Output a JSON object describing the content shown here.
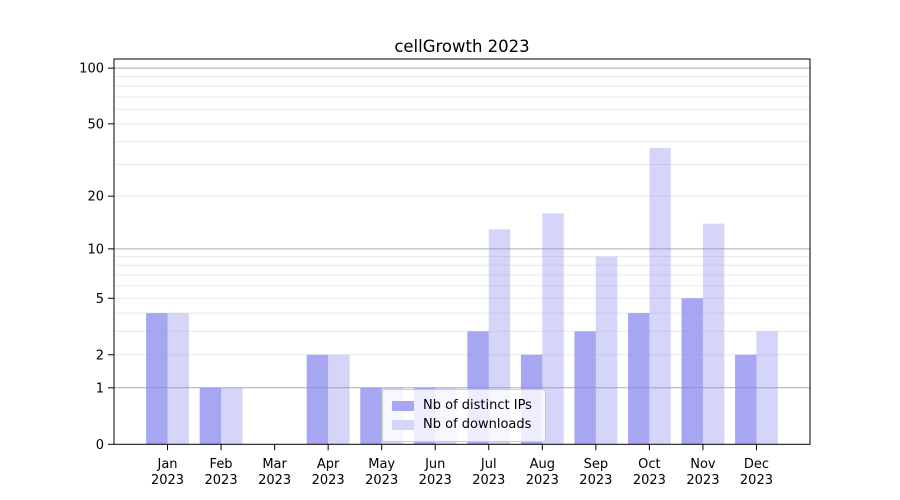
{
  "figure": {
    "title": "cellGrowth 2023",
    "background_color": "#ffffff"
  },
  "chart_data": {
    "type": "bar",
    "title": "cellGrowth 2023",
    "xlabel": "",
    "ylabel": "",
    "categories": [
      "Jan",
      "Feb",
      "Mar",
      "Apr",
      "May",
      "Jun",
      "Jul",
      "Aug",
      "Sep",
      "Oct",
      "Nov",
      "Dec"
    ],
    "x_year_label": "2023",
    "series": [
      {
        "name": "Nb of distinct IPs",
        "values": [
          4,
          1,
          0,
          2,
          1,
          1,
          3,
          2,
          3,
          4,
          5,
          2
        ],
        "color": "#8888ee",
        "alpha": 0.75,
        "swatch_color": "#a6a6f2"
      },
      {
        "name": "Nb of downloads",
        "values": [
          4,
          1,
          0,
          2,
          1,
          1,
          13,
          16,
          9,
          37,
          14,
          3
        ],
        "color": "#8888ee",
        "alpha": 0.35,
        "swatch_color": "#d5d5f9"
      }
    ],
    "y_axis": {
      "scale": "log1p",
      "range": [
        0,
        112
      ],
      "tick_values": [
        0,
        1,
        2,
        5,
        10,
        20,
        50,
        100
      ],
      "tick_labels": [
        "0",
        "1",
        "2",
        "5",
        "10",
        "20",
        "50",
        "100"
      ],
      "major_gridlines": [
        1,
        10,
        100
      ],
      "minor_gridlines": [
        2,
        3,
        4,
        5,
        6,
        7,
        8,
        9,
        20,
        30,
        40,
        50,
        60,
        70,
        80,
        90
      ]
    },
    "grid": true,
    "legend_position": "lower-center",
    "colors": {
      "axis": "#000000",
      "major_grid": "#adadad",
      "minor_grid": "#e9e9e9",
      "tick_text": "#000000"
    }
  }
}
